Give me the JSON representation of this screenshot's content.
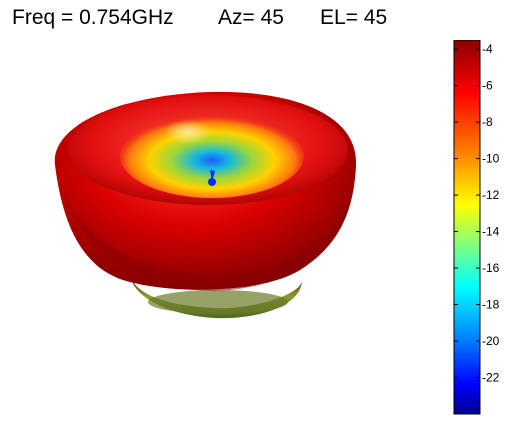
{
  "title": {
    "freq": "Freq = 0.754GHz",
    "az": "Az= 45",
    "el": "EL= 45"
  },
  "chart_data": {
    "type": "surface-3d",
    "description_fields": {
      "frequency_ghz": 0.754,
      "azimuth_deg": 45,
      "elevation_deg": 45
    },
    "colorbar": {
      "ticks": [
        -4,
        -6,
        -8,
        -10,
        -12,
        -14,
        -16,
        -18,
        -20,
        -22
      ],
      "range": [
        -24,
        -3.5
      ],
      "colormap": "jet"
    }
  },
  "colors": {
    "dark_red": "#8b0000",
    "red": "#e00000",
    "orange": "#ff8000",
    "yellow": "#ffff00",
    "green": "#40ff40",
    "cyan": "#00ffff",
    "blue": "#0000ff",
    "dark_blue": "#00008f"
  }
}
